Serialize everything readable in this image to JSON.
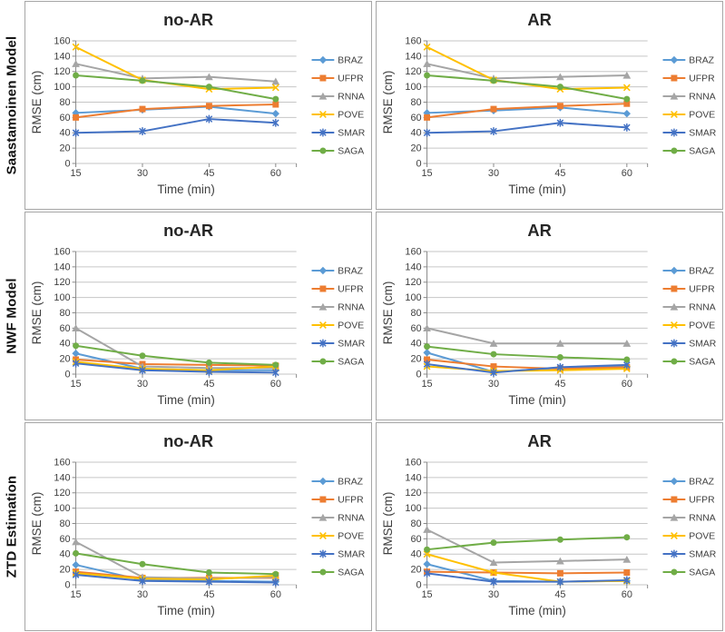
{
  "figure": {
    "rows": [
      {
        "label": "Saastamoinen Model"
      },
      {
        "label": "NWF Model"
      },
      {
        "label": "ZTD Estimation"
      }
    ],
    "column_titles": [
      "no-AR",
      "AR"
    ]
  },
  "series_styles": {
    "BRAZ": {
      "color": "#5B9BD5",
      "marker": "diamond"
    },
    "UFPR": {
      "color": "#ED7D31",
      "marker": "square"
    },
    "RNNA": {
      "color": "#A5A5A5",
      "marker": "triangle"
    },
    "POVE": {
      "color": "#FFC000",
      "marker": "x"
    },
    "SMAR": {
      "color": "#4472C4",
      "marker": "asterisk"
    },
    "SAGA": {
      "color": "#70AD47",
      "marker": "circle"
    }
  },
  "chart_data": [
    {
      "type": "line",
      "row": "Saastamoinen Model",
      "title": "no-AR",
      "x": [
        15,
        30,
        45,
        60
      ],
      "xlabel": "Time (min)",
      "ylabel": "RMSE (cm)",
      "ylim": [
        0,
        160
      ],
      "ytick_step": 20,
      "grid": true,
      "legend_position": "right",
      "series": [
        {
          "name": "BRAZ",
          "values": [
            66,
            70,
            74,
            65
          ]
        },
        {
          "name": "UFPR",
          "values": [
            60,
            71,
            75,
            77
          ]
        },
        {
          "name": "RNNA",
          "values": [
            130,
            111,
            113,
            107
          ]
        },
        {
          "name": "POVE",
          "values": [
            152,
            109,
            97,
            99
          ]
        },
        {
          "name": "SMAR",
          "values": [
            40,
            42,
            58,
            53
          ]
        },
        {
          "name": "SAGA",
          "values": [
            115,
            108,
            100,
            84
          ]
        }
      ]
    },
    {
      "type": "line",
      "row": "Saastamoinen Model",
      "title": "AR",
      "x": [
        15,
        30,
        45,
        60
      ],
      "xlabel": "Time (min)",
      "ylabel": "RMSE (cm)",
      "ylim": [
        0,
        160
      ],
      "ytick_step": 20,
      "grid": true,
      "legend_position": "right",
      "series": [
        {
          "name": "BRAZ",
          "values": [
            66,
            69,
            73,
            65
          ]
        },
        {
          "name": "UFPR",
          "values": [
            60,
            71,
            75,
            78
          ]
        },
        {
          "name": "RNNA",
          "values": [
            130,
            111,
            113,
            115
          ]
        },
        {
          "name": "POVE",
          "values": [
            152,
            109,
            97,
            99
          ]
        },
        {
          "name": "SMAR",
          "values": [
            40,
            42,
            53,
            47
          ]
        },
        {
          "name": "SAGA",
          "values": [
            115,
            108,
            100,
            84
          ]
        }
      ]
    },
    {
      "type": "line",
      "row": "NWF Model",
      "title": "no-AR",
      "x": [
        15,
        30,
        45,
        60
      ],
      "xlabel": "Time (min)",
      "ylabel": "RMSE (cm)",
      "ylim": [
        0,
        160
      ],
      "ytick_step": 20,
      "grid": true,
      "legend_position": "right",
      "series": [
        {
          "name": "BRAZ",
          "values": [
            27,
            7,
            5,
            5
          ]
        },
        {
          "name": "UFPR",
          "values": [
            19,
            13,
            12,
            11
          ]
        },
        {
          "name": "RNNA",
          "values": [
            60,
            10,
            8,
            8
          ]
        },
        {
          "name": "POVE",
          "values": [
            16,
            7,
            5,
            10
          ]
        },
        {
          "name": "SMAR",
          "values": [
            14,
            5,
            3,
            2
          ]
        },
        {
          "name": "SAGA",
          "values": [
            37,
            24,
            15,
            12
          ]
        }
      ]
    },
    {
      "type": "line",
      "row": "NWF Model",
      "title": "AR",
      "x": [
        15,
        30,
        45,
        60
      ],
      "xlabel": "Time (min)",
      "ylabel": "RMSE (cm)",
      "ylim": [
        0,
        160
      ],
      "ytick_step": 20,
      "grid": true,
      "legend_position": "right",
      "series": [
        {
          "name": "BRAZ",
          "values": [
            28,
            3,
            8,
            10
          ]
        },
        {
          "name": "UFPR",
          "values": [
            19,
            10,
            7,
            9
          ]
        },
        {
          "name": "RNNA",
          "values": [
            60,
            40,
            40,
            40
          ]
        },
        {
          "name": "POVE",
          "values": [
            10,
            4,
            5,
            7
          ]
        },
        {
          "name": "SMAR",
          "values": [
            13,
            2,
            9,
            12
          ]
        },
        {
          "name": "SAGA",
          "values": [
            36,
            26,
            22,
            19
          ]
        }
      ]
    },
    {
      "type": "line",
      "row": "ZTD Estimation",
      "title": "no-AR",
      "x": [
        15,
        30,
        45,
        60
      ],
      "xlabel": "Time (min)",
      "ylabel": "RMSE (cm)",
      "ylim": [
        0,
        160
      ],
      "ytick_step": 20,
      "grid": true,
      "legend_position": "right",
      "series": [
        {
          "name": "BRAZ",
          "values": [
            26,
            6,
            5,
            4
          ]
        },
        {
          "name": "UFPR",
          "values": [
            17,
            9,
            9,
            9
          ]
        },
        {
          "name": "RNNA",
          "values": [
            56,
            10,
            8,
            10
          ]
        },
        {
          "name": "POVE",
          "values": [
            15,
            8,
            7,
            12
          ]
        },
        {
          "name": "SMAR",
          "values": [
            13,
            5,
            4,
            3
          ]
        },
        {
          "name": "SAGA",
          "values": [
            41,
            27,
            16,
            14
          ]
        }
      ]
    },
    {
      "type": "line",
      "row": "ZTD Estimation",
      "title": "AR",
      "x": [
        15,
        30,
        45,
        60
      ],
      "xlabel": "Time (min)",
      "ylabel": "RMSE (cm)",
      "ylim": [
        0,
        160
      ],
      "ytick_step": 20,
      "grid": true,
      "legend_position": "right",
      "series": [
        {
          "name": "BRAZ",
          "values": [
            27,
            5,
            4,
            5
          ]
        },
        {
          "name": "UFPR",
          "values": [
            17,
            16,
            15,
            16
          ]
        },
        {
          "name": "RNNA",
          "values": [
            72,
            29,
            31,
            33
          ]
        },
        {
          "name": "POVE",
          "values": [
            40,
            16,
            4,
            5
          ]
        },
        {
          "name": "SMAR",
          "values": [
            15,
            4,
            4,
            6
          ]
        },
        {
          "name": "SAGA",
          "values": [
            46,
            55,
            59,
            62
          ]
        }
      ]
    }
  ]
}
